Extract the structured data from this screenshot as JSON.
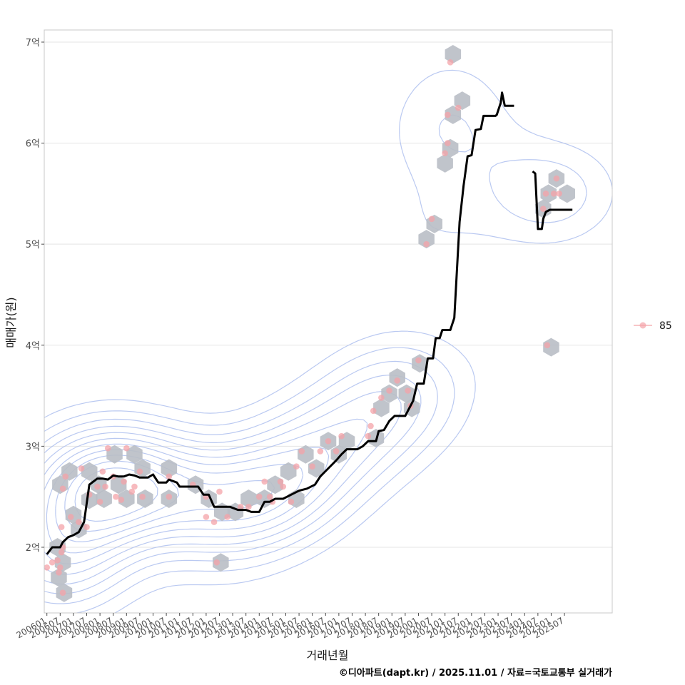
{
  "chart_data": {
    "type": "scatter",
    "title": "",
    "xlabel": "거래년월",
    "ylabel": "매매가(원)",
    "caption": "©디아파트(dapt.kr) / 2025.11.01 / 자료=국토교통부 실거래가",
    "ylim": [
      1.35,
      7.12
    ],
    "xlim": [
      2005.9,
      2027.3
    ],
    "y_ticks": [
      {
        "value": 2,
        "label": "2억"
      },
      {
        "value": 3,
        "label": "3억"
      },
      {
        "value": 4,
        "label": "4억"
      },
      {
        "value": 5,
        "label": "5억"
      },
      {
        "value": 6,
        "label": "6억"
      },
      {
        "value": 7,
        "label": "7억"
      }
    ],
    "x_ticks": [
      "200601",
      "200607",
      "200701",
      "200707",
      "200801",
      "200807",
      "200901",
      "200907",
      "201001",
      "201007",
      "201101",
      "201107",
      "201201",
      "201207",
      "201301",
      "201307",
      "201401",
      "201407",
      "201501",
      "201507",
      "201601",
      "201607",
      "201701",
      "201707",
      "201801",
      "201807",
      "201901",
      "201907",
      "202001",
      "202007",
      "202101",
      "202107",
      "202201",
      "202207",
      "202301",
      "202307",
      "202401",
      "202407",
      "202501",
      "202507"
    ],
    "legend": {
      "title": "",
      "position": "right",
      "entries": [
        "85"
      ]
    },
    "grid": true,
    "colors": {
      "points": "#f4a3a8",
      "hex": "#b9bec5",
      "trend": "#000000",
      "contour": "#aebfee",
      "grid": "#e5e5e5",
      "panel_border": "#c8c8c8"
    },
    "series": [
      {
        "name": "85",
        "kind": "transactions",
        "points": [
          [
            2006.0,
            1.8
          ],
          [
            2006.2,
            1.85
          ],
          [
            2006.4,
            1.87
          ],
          [
            2006.5,
            1.8
          ],
          [
            2006.55,
            1.95
          ],
          [
            2006.6,
            2.0
          ],
          [
            2006.45,
            1.75
          ],
          [
            2006.6,
            2.58
          ],
          [
            2006.7,
            2.7
          ],
          [
            2006.55,
            2.2
          ],
          [
            2006.9,
            2.3
          ],
          [
            2007.2,
            2.25
          ],
          [
            2007.3,
            2.78
          ],
          [
            2007.5,
            2.2
          ],
          [
            2006.6,
            1.55
          ],
          [
            2007.6,
            2.52
          ],
          [
            2007.9,
            2.6
          ],
          [
            2008.0,
            2.45
          ],
          [
            2008.1,
            2.75
          ],
          [
            2008.2,
            2.6
          ],
          [
            2008.3,
            2.98
          ],
          [
            2008.5,
            2.7
          ],
          [
            2008.6,
            2.5
          ],
          [
            2008.8,
            2.47
          ],
          [
            2008.9,
            2.65
          ],
          [
            2009.0,
            2.98
          ],
          [
            2009.2,
            2.55
          ],
          [
            2009.3,
            2.6
          ],
          [
            2009.5,
            2.75
          ],
          [
            2009.6,
            2.5
          ],
          [
            2010.6,
            2.7
          ],
          [
            2010.6,
            2.5
          ],
          [
            2011.5,
            2.62
          ],
          [
            2012.0,
            2.5
          ],
          [
            2012.0,
            2.3
          ],
          [
            2012.3,
            2.25
          ],
          [
            2012.5,
            2.55
          ],
          [
            2012.8,
            2.3
          ],
          [
            2012.4,
            1.85
          ],
          [
            2013.3,
            2.4
          ],
          [
            2013.6,
            2.4
          ],
          [
            2014.0,
            2.5
          ],
          [
            2014.2,
            2.65
          ],
          [
            2014.4,
            2.5
          ],
          [
            2014.5,
            2.45
          ],
          [
            2014.8,
            2.65
          ],
          [
            2014.9,
            2.6
          ],
          [
            2015.2,
            2.45
          ],
          [
            2015.4,
            2.8
          ],
          [
            2015.6,
            2.95
          ],
          [
            2016.0,
            2.8
          ],
          [
            2016.3,
            2.95
          ],
          [
            2016.6,
            3.05
          ],
          [
            2016.9,
            2.95
          ],
          [
            2017.1,
            3.1
          ],
          [
            2018.1,
            3.1
          ],
          [
            2018.2,
            3.2
          ],
          [
            2018.3,
            3.35
          ],
          [
            2018.6,
            3.48
          ],
          [
            2018.9,
            3.55
          ],
          [
            2019.2,
            3.65
          ],
          [
            2019.6,
            3.55
          ],
          [
            2019.7,
            3.4
          ],
          [
            2020.0,
            3.85
          ],
          [
            2020.3,
            5.0
          ],
          [
            2020.5,
            5.25
          ],
          [
            2021.0,
            5.9
          ],
          [
            2021.1,
            6.0
          ],
          [
            2021.1,
            6.28
          ],
          [
            2021.2,
            6.8
          ],
          [
            2021.5,
            6.35
          ],
          [
            2024.7,
            5.35
          ],
          [
            2024.8,
            5.5
          ],
          [
            2024.85,
            4.0
          ],
          [
            2025.1,
            5.5
          ],
          [
            2025.2,
            5.65
          ],
          [
            2025.3,
            5.5
          ]
        ]
      },
      {
        "name": "hexbin",
        "kind": "density-bins",
        "centers": [
          [
            2006.45,
            1.7
          ],
          [
            2006.65,
            1.55
          ],
          [
            2006.6,
            1.85
          ],
          [
            2006.4,
            2.0
          ],
          [
            2006.5,
            2.62
          ],
          [
            2006.85,
            2.75
          ],
          [
            2007.2,
            2.18
          ],
          [
            2007.0,
            2.32
          ],
          [
            2007.6,
            2.75
          ],
          [
            2007.6,
            2.47
          ],
          [
            2007.95,
            2.62
          ],
          [
            2008.15,
            2.48
          ],
          [
            2008.55,
            2.92
          ],
          [
            2008.7,
            2.62
          ],
          [
            2009.0,
            2.48
          ],
          [
            2009.3,
            2.92
          ],
          [
            2009.6,
            2.78
          ],
          [
            2009.7,
            2.48
          ],
          [
            2010.6,
            2.78
          ],
          [
            2010.6,
            2.48
          ],
          [
            2011.6,
            2.62
          ],
          [
            2012.1,
            2.48
          ],
          [
            2012.6,
            2.35
          ],
          [
            2013.1,
            2.35
          ],
          [
            2012.55,
            1.85
          ],
          [
            2013.6,
            2.48
          ],
          [
            2014.2,
            2.48
          ],
          [
            2014.6,
            2.62
          ],
          [
            2015.4,
            2.48
          ],
          [
            2015.1,
            2.75
          ],
          [
            2015.75,
            2.92
          ],
          [
            2016.15,
            2.78
          ],
          [
            2016.6,
            3.05
          ],
          [
            2017.0,
            2.92
          ],
          [
            2017.3,
            3.05
          ],
          [
            2018.4,
            3.08
          ],
          [
            2018.6,
            3.38
          ],
          [
            2018.9,
            3.52
          ],
          [
            2019.2,
            3.68
          ],
          [
            2019.55,
            3.52
          ],
          [
            2019.75,
            3.38
          ],
          [
            2020.05,
            3.82
          ],
          [
            2020.3,
            5.05
          ],
          [
            2020.6,
            5.2
          ],
          [
            2021.0,
            5.8
          ],
          [
            2021.2,
            5.95
          ],
          [
            2021.3,
            6.28
          ],
          [
            2021.3,
            6.88
          ],
          [
            2021.65,
            6.42
          ],
          [
            2024.7,
            5.35
          ],
          [
            2024.9,
            5.5
          ],
          [
            2025.2,
            5.65
          ],
          [
            2025.6,
            5.5
          ],
          [
            2025.0,
            3.98
          ]
        ]
      },
      {
        "name": "median",
        "kind": "trend",
        "points": [
          [
            2006.0,
            1.93
          ],
          [
            2006.2,
            2.0
          ],
          [
            2006.5,
            2.0
          ],
          [
            2006.6,
            2.05
          ],
          [
            2006.8,
            2.1
          ],
          [
            2007.0,
            2.12
          ],
          [
            2007.2,
            2.15
          ],
          [
            2007.4,
            2.25
          ],
          [
            2007.6,
            2.62
          ],
          [
            2007.9,
            2.68
          ],
          [
            2008.1,
            2.68
          ],
          [
            2008.3,
            2.67
          ],
          [
            2008.5,
            2.71
          ],
          [
            2008.7,
            2.7
          ],
          [
            2008.9,
            2.7
          ],
          [
            2009.1,
            2.72
          ],
          [
            2009.3,
            2.71
          ],
          [
            2009.5,
            2.69
          ],
          [
            2009.8,
            2.69
          ],
          [
            2010.0,
            2.72
          ],
          [
            2010.2,
            2.64
          ],
          [
            2010.5,
            2.64
          ],
          [
            2010.6,
            2.67
          ],
          [
            2010.9,
            2.64
          ],
          [
            2011.0,
            2.6
          ],
          [
            2011.3,
            2.6
          ],
          [
            2011.7,
            2.6
          ],
          [
            2011.9,
            2.52
          ],
          [
            2012.1,
            2.52
          ],
          [
            2012.3,
            2.4
          ],
          [
            2012.5,
            2.4
          ],
          [
            2012.7,
            2.4
          ],
          [
            2012.9,
            2.4
          ],
          [
            2013.2,
            2.37
          ],
          [
            2013.5,
            2.37
          ],
          [
            2013.7,
            2.35
          ],
          [
            2014.0,
            2.35
          ],
          [
            2014.2,
            2.45
          ],
          [
            2014.4,
            2.45
          ],
          [
            2014.6,
            2.48
          ],
          [
            2014.9,
            2.48
          ],
          [
            2015.2,
            2.52
          ],
          [
            2015.5,
            2.56
          ],
          [
            2015.8,
            2.58
          ],
          [
            2016.1,
            2.62
          ],
          [
            2016.3,
            2.7
          ],
          [
            2016.6,
            2.78
          ],
          [
            2016.9,
            2.86
          ],
          [
            2017.1,
            2.92
          ],
          [
            2017.3,
            2.97
          ],
          [
            2017.7,
            2.97
          ],
          [
            2017.9,
            3.0
          ],
          [
            2018.1,
            3.05
          ],
          [
            2018.4,
            3.05
          ],
          [
            2018.5,
            3.15
          ],
          [
            2018.7,
            3.16
          ],
          [
            2018.9,
            3.25
          ],
          [
            2019.1,
            3.3
          ],
          [
            2019.3,
            3.3
          ],
          [
            2019.5,
            3.3
          ],
          [
            2019.6,
            3.35
          ],
          [
            2019.8,
            3.45
          ],
          [
            2019.95,
            3.62
          ],
          [
            2020.2,
            3.62
          ],
          [
            2020.35,
            3.87
          ],
          [
            2020.55,
            3.87
          ],
          [
            2020.65,
            4.07
          ],
          [
            2020.8,
            4.07
          ],
          [
            2020.9,
            4.15
          ],
          [
            2021.2,
            4.15
          ],
          [
            2021.35,
            4.27
          ],
          [
            2021.55,
            5.22
          ],
          [
            2021.7,
            5.58
          ],
          [
            2021.85,
            5.87
          ],
          [
            2022.0,
            5.88
          ],
          [
            2022.15,
            6.13
          ],
          [
            2022.35,
            6.14
          ],
          [
            2022.45,
            6.27
          ],
          [
            2022.9,
            6.27
          ],
          [
            2022.95,
            6.28
          ],
          [
            2023.1,
            6.4
          ],
          [
            2023.15,
            6.5
          ],
          [
            2023.25,
            6.37
          ],
          [
            2023.6,
            6.37
          ]
        ]
      },
      {
        "name": "median-recent",
        "kind": "trend",
        "points": [
          [
            2024.3,
            5.72
          ],
          [
            2024.4,
            5.7
          ],
          [
            2024.5,
            5.15
          ],
          [
            2024.65,
            5.15
          ],
          [
            2024.7,
            5.25
          ],
          [
            2024.8,
            5.32
          ],
          [
            2024.95,
            5.34
          ],
          [
            2025.2,
            5.34
          ],
          [
            2025.8,
            5.34
          ]
        ]
      }
    ]
  }
}
